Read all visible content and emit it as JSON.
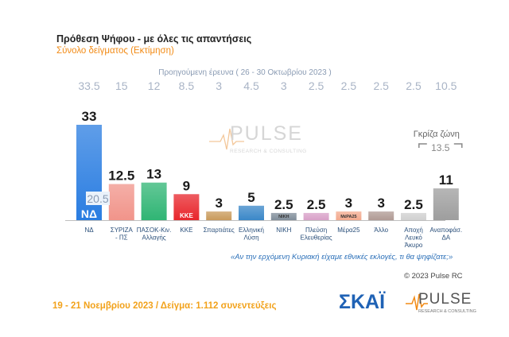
{
  "header": {
    "title": "Πρόθεση Ψήφου - με όλες τις απαντήσεις",
    "subtitle": "Σύνολο δείγματος   (Εκτίμηση)",
    "prev_caption": "Προηγούμενη έρευνα  ( 26 - 30 Οκτωβρίου 2023 )"
  },
  "chart_data": {
    "type": "bar",
    "categories": [
      "ΝΔ",
      "ΣΥΡΙΖΑ - ΠΣ",
      "ΠΑΣΟΚ-Κιν. Αλλαγής",
      "ΚΚΕ",
      "Σπαρτιάτες",
      "Ελληνική Λύση",
      "ΝΙΚΗ",
      "Πλεύση Ελευθερίας",
      "Μέρα25",
      "Άλλο",
      "Αποχή Λευκό Άκυρο",
      "Αναποφάσ. ΔΑ"
    ],
    "category_lines": [
      [
        "ΝΔ"
      ],
      [
        "ΣΥΡΙΖΑ",
        "- ΠΣ"
      ],
      [
        "ΠΑΣΟΚ-Κιν.",
        "Αλλαγής"
      ],
      [
        "ΚΚΕ"
      ],
      [
        "Σπαρτιάτες"
      ],
      [
        "Ελληνική",
        "Λύση"
      ],
      [
        "ΝΙΚΗ"
      ],
      [
        "Πλεύση",
        "Ελευθερίας"
      ],
      [
        "Μέρα25"
      ],
      [
        "Άλλο"
      ],
      [
        "Αποχή",
        "Λευκό",
        "Άκυρο"
      ],
      [
        "Αναποφάσ.",
        "ΔΑ"
      ]
    ],
    "series": [
      {
        "name": "current",
        "values": [
          33,
          12.5,
          13,
          9,
          3,
          5,
          2.5,
          2.5,
          3,
          3,
          2.5,
          11
        ],
        "labels": [
          "33",
          "12.5",
          "13",
          "9",
          "3",
          "5",
          "2.5",
          "2.5",
          "3",
          "3",
          "2.5",
          "11"
        ]
      },
      {
        "name": "previous",
        "values": [
          33.5,
          15,
          12,
          8.5,
          3,
          4.5,
          3,
          2.5,
          2.5,
          2.5,
          2.5,
          10.5
        ],
        "labels": [
          "33.5",
          "15",
          "12",
          "8.5",
          "3",
          "4.5",
          "3",
          "2.5",
          "2.5",
          "2.5",
          "2.5",
          "10.5"
        ]
      }
    ],
    "colors": [
      "#2a7de1",
      "#f1948a",
      "#2fb574",
      "#e8262c",
      "#c99a5b",
      "#3a87c8",
      "#7f8c99",
      "#d8a0c8",
      "#f3a98d",
      "#b09a94",
      "#d0d0d0",
      "#9e9e9e"
    ],
    "logo_texts": [
      "ΝΔ",
      "",
      "",
      "ΚΚΕ",
      "",
      "",
      "ΝΙΚΗ",
      "",
      "ΜέΡΑ25",
      "",
      "",
      ""
    ],
    "gray_zone": {
      "label": "Γκρίζα ζώνη",
      "value": "13.5"
    },
    "nd_secondary": "20.5",
    "ylim": [
      0,
      40
    ]
  },
  "watermark": {
    "brand": "PULSE",
    "tagline": "RESEARCH & CONSULTING"
  },
  "question": "«Αν την ερχόμενη Κυριακή είχαμε εθνικές εκλογές, τι θα ψηφίζατε;»",
  "copyright": "© 2023 Pulse RC",
  "footer": "19 - 21  Νοεμβρίου  2023  /  Δείγμα:  1.112 συνεντεύξεις",
  "logos": {
    "skai": "ΣΚΑΪ",
    "pulse": "PULSE",
    "pulse_tagline": "RESEARCH & CONSULTING"
  },
  "theme": {
    "prev_value_color": "#a9b4c6",
    "label_color": "#2a4f7a",
    "value_color": "#1a1a1a"
  }
}
